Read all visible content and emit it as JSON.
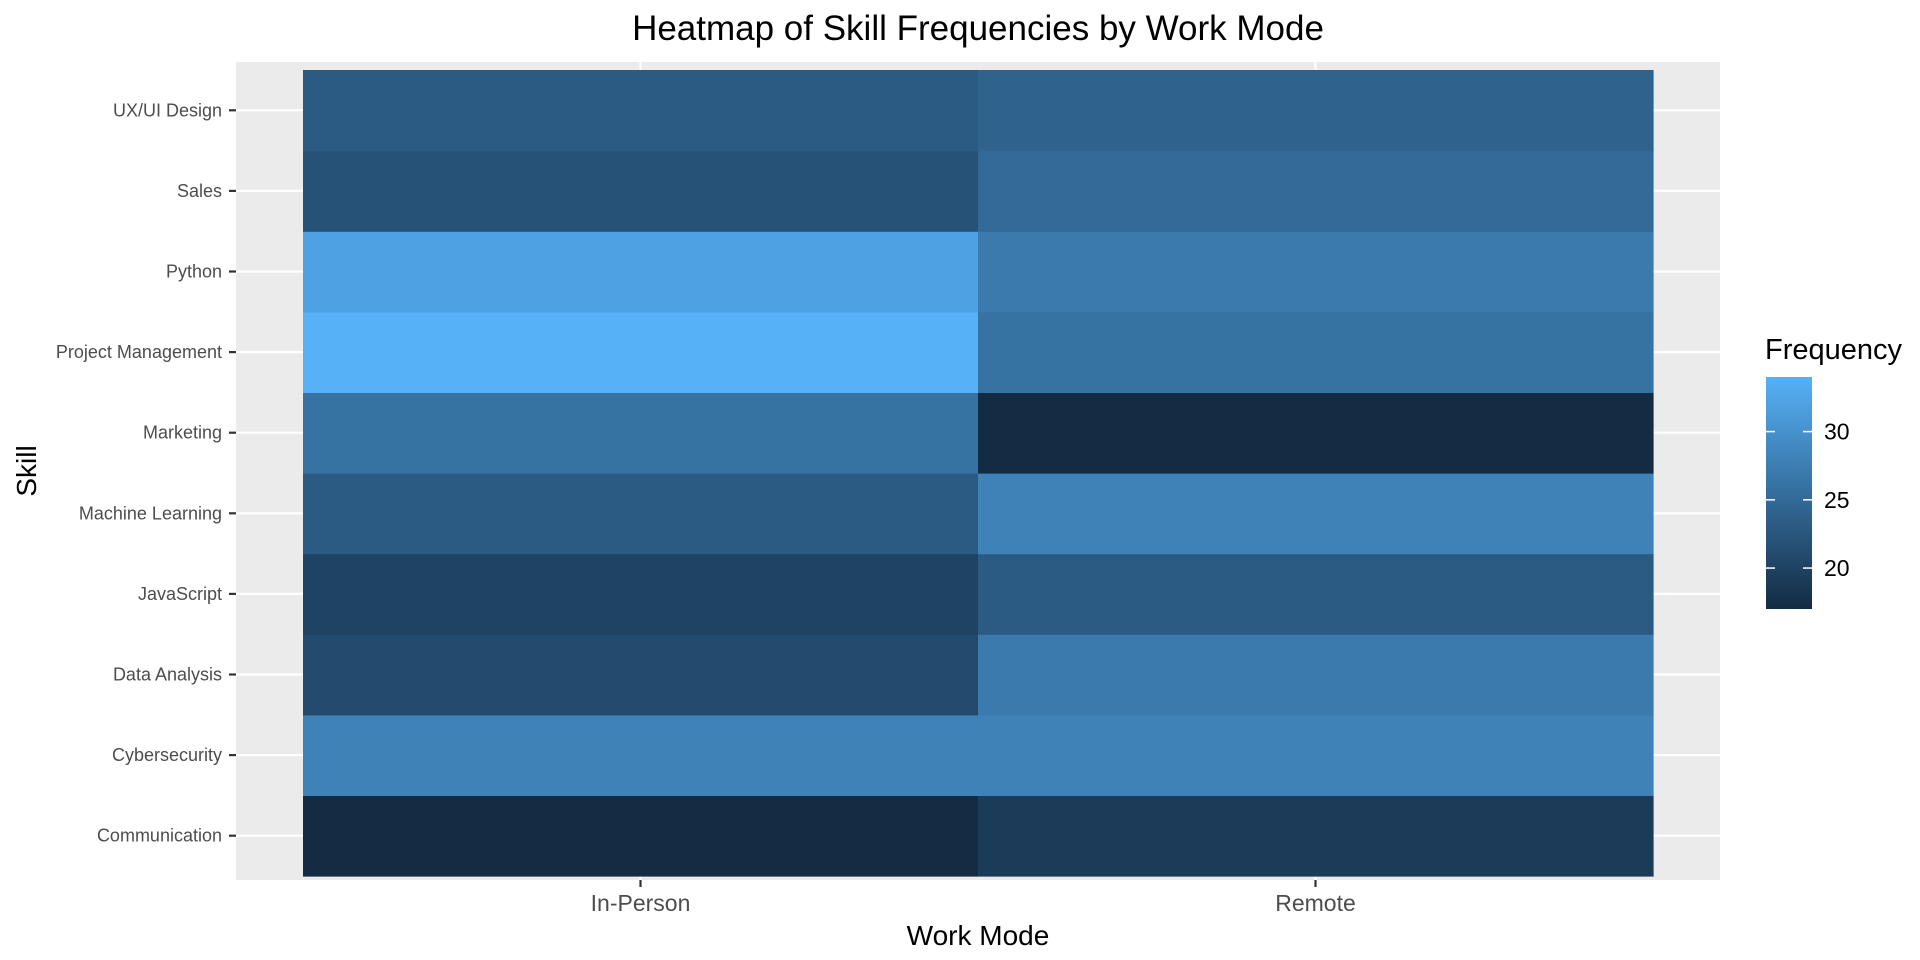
{
  "chart_data": {
    "type": "heatmap",
    "title": "Heatmap of Skill Frequencies by Work Mode",
    "xlabel": "Work Mode",
    "ylabel": "Skill",
    "x_categories": [
      "In-Person",
      "Remote"
    ],
    "y_categories": [
      "Communication",
      "Cybersecurity",
      "Data Analysis",
      "JavaScript",
      "Machine Learning",
      "Marketing",
      "Project Management",
      "Python",
      "Sales",
      "UX/UI Design"
    ],
    "values": {
      "UX/UI Design": [
        23,
        24
      ],
      "Sales": [
        22,
        25
      ],
      "Python": [
        32,
        27
      ],
      "Project Management": [
        34,
        26
      ],
      "Marketing": [
        26,
        17
      ],
      "Machine Learning": [
        23,
        28
      ],
      "JavaScript": [
        20,
        23
      ],
      "Data Analysis": [
        21,
        27
      ],
      "Cybersecurity": [
        28,
        28
      ],
      "Communication": [
        17,
        19
      ]
    },
    "legend": {
      "title": "Frequency",
      "ticks": [
        20,
        25,
        30
      ],
      "range": [
        17,
        34
      ],
      "low_color": "#132B43",
      "high_color": "#56B1F7",
      "placement": "right"
    },
    "grid": true,
    "panel_background": "#EBEBEB",
    "grid_color": "#FFFFFF"
  }
}
